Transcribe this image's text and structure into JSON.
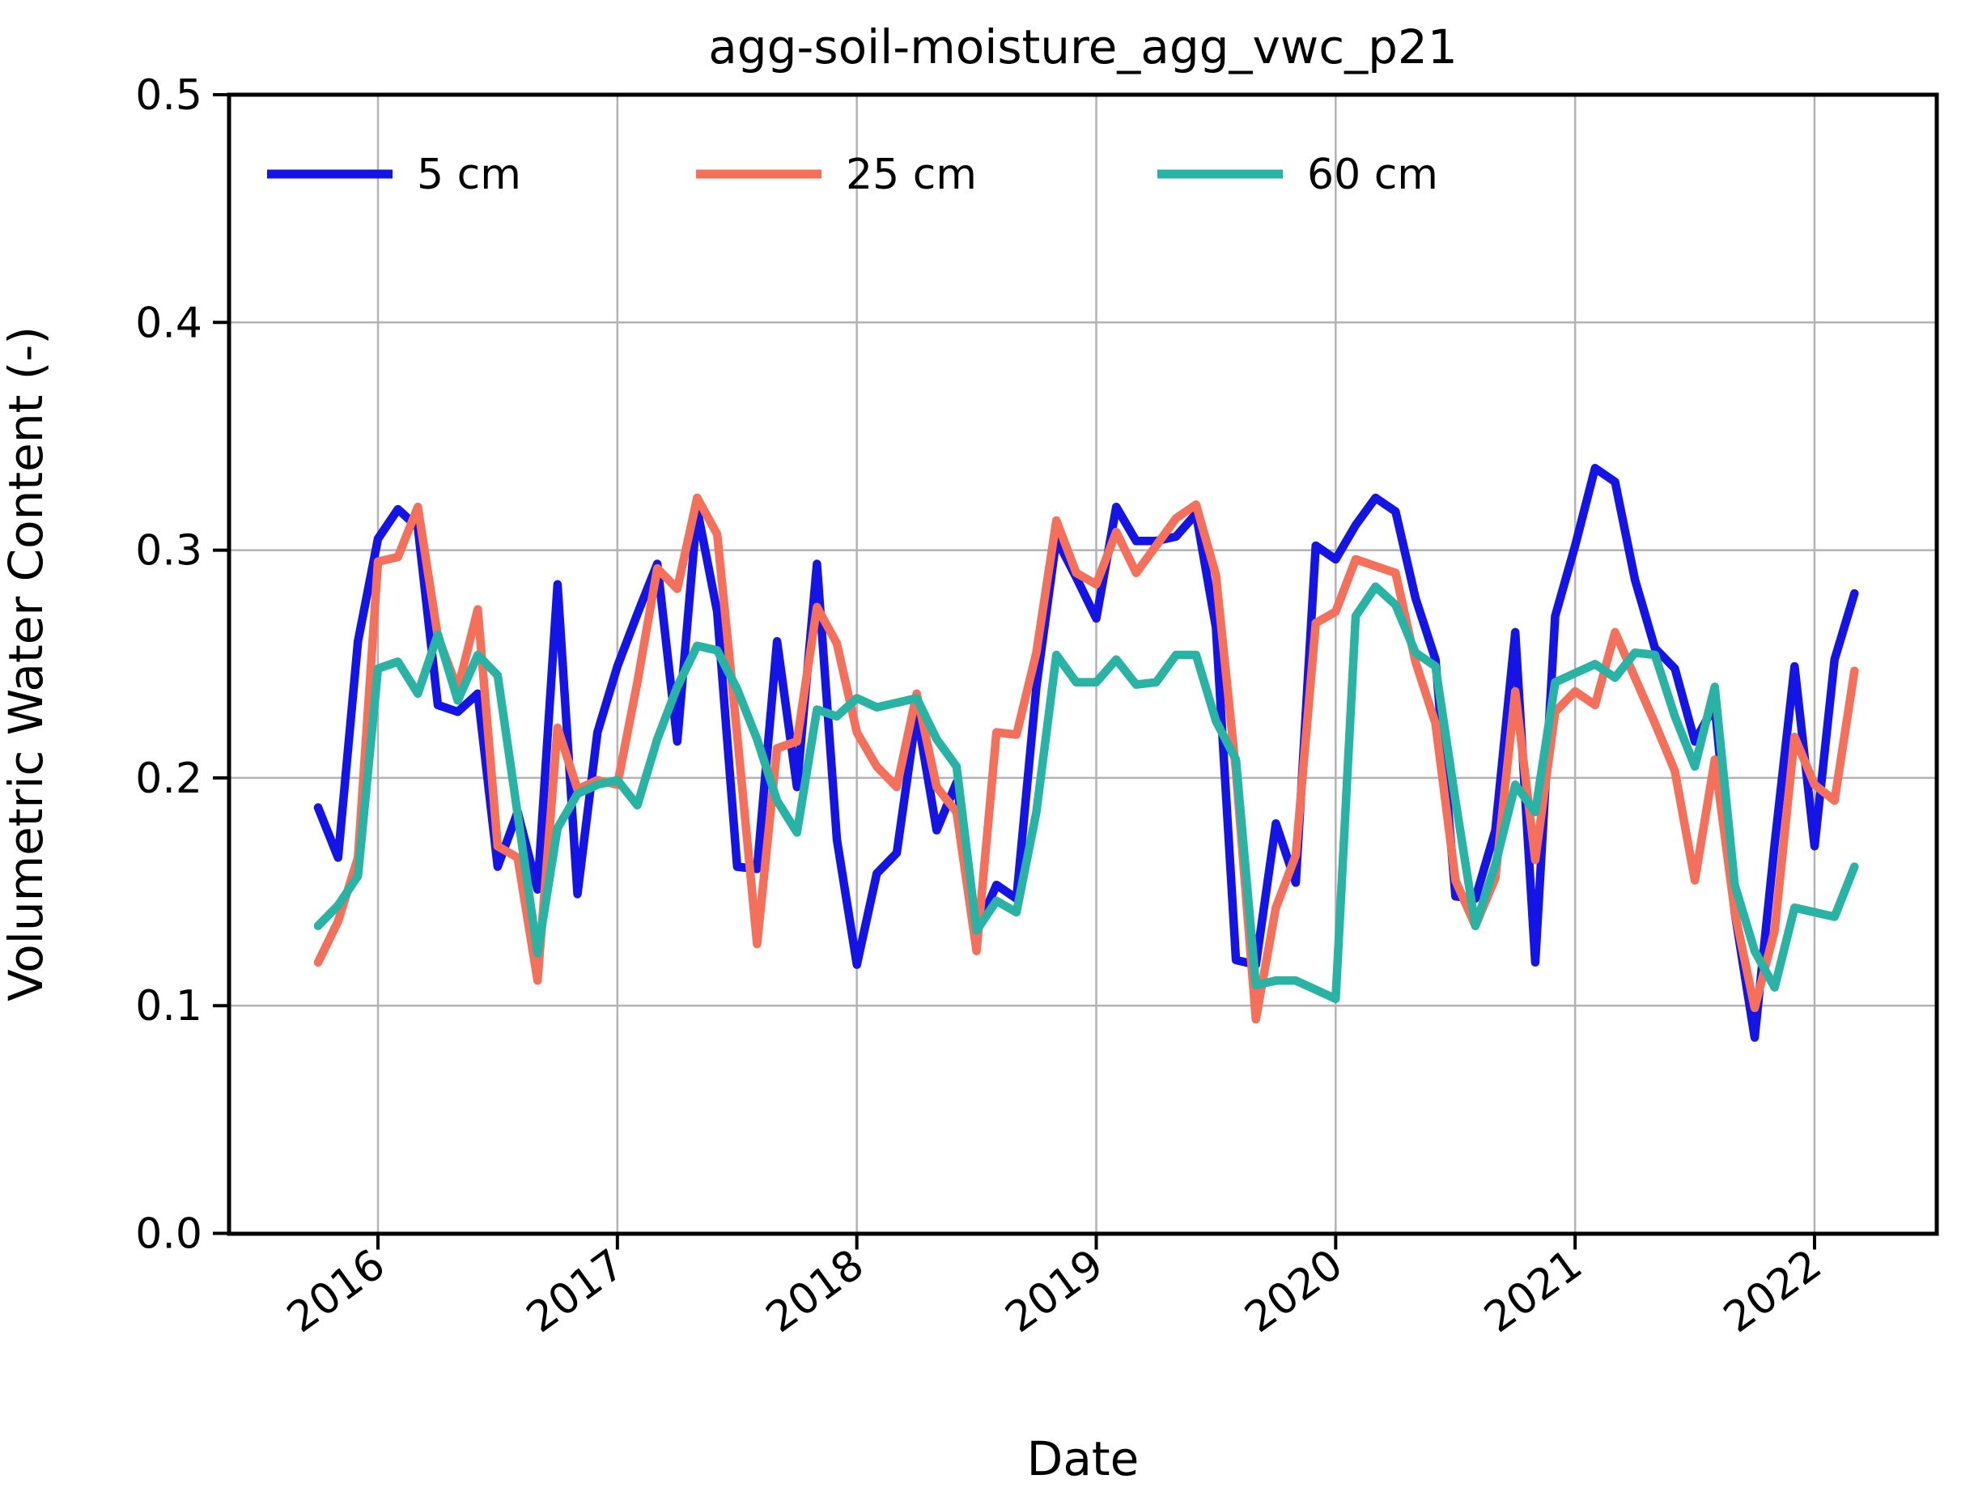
{
  "chart_data": {
    "type": "line",
    "title": "agg-soil-moisture_agg_vwc_p21",
    "xlabel": "Date",
    "ylabel": "Volumetric Water Content (-)",
    "ylim": [
      0.0,
      0.5
    ],
    "yticks": [
      0.0,
      0.1,
      0.2,
      0.3,
      0.4,
      0.5
    ],
    "ytick_labels": [
      "0.0",
      "0.1",
      "0.2",
      "0.3",
      "0.4",
      "0.5"
    ],
    "xtick_years": [
      "2016",
      "2017",
      "2018",
      "2019",
      "2020",
      "2021",
      "2022"
    ],
    "grid": true,
    "legend_position": "upper-left-horizontal",
    "background_color": "#ffffff",
    "grid_color": "#b3b3b3",
    "x": [
      "2015-10",
      "2015-11",
      "2015-12",
      "2016-01",
      "2016-02",
      "2016-03",
      "2016-04",
      "2016-05",
      "2016-06",
      "2016-07",
      "2016-08",
      "2016-09",
      "2016-10",
      "2016-11",
      "2016-12",
      "2017-01",
      "2017-02",
      "2017-03",
      "2017-04",
      "2017-05",
      "2017-06",
      "2017-07",
      "2017-08",
      "2017-09",
      "2017-10",
      "2017-11",
      "2017-12",
      "2018-01",
      "2018-02",
      "2018-03",
      "2018-04",
      "2018-05",
      "2018-06",
      "2018-07",
      "2018-08",
      "2018-09",
      "2018-10",
      "2018-11",
      "2018-12",
      "2019-01",
      "2019-02",
      "2019-03",
      "2019-04",
      "2019-05",
      "2019-06",
      "2019-07",
      "2019-08",
      "2019-09",
      "2019-10",
      "2019-11",
      "2019-12",
      "2020-01",
      "2020-02",
      "2020-03",
      "2020-04",
      "2020-05",
      "2020-06",
      "2020-07",
      "2020-08",
      "2020-09",
      "2020-10",
      "2020-11",
      "2020-12",
      "2021-01",
      "2021-02",
      "2021-03",
      "2021-04",
      "2021-05",
      "2021-06",
      "2021-07",
      "2021-08",
      "2021-09",
      "2021-10",
      "2021-11",
      "2021-12",
      "2022-01",
      "2022-02",
      "2022-03"
    ],
    "series": [
      {
        "name": "5 cm",
        "color": "#1414e6",
        "values": [
          0.187,
          0.165,
          0.26,
          0.305,
          0.318,
          0.31,
          0.232,
          0.229,
          0.237,
          0.161,
          0.185,
          0.151,
          0.285,
          0.149,
          0.22,
          0.249,
          0.272,
          0.294,
          0.216,
          0.318,
          0.273,
          0.161,
          0.16,
          0.26,
          0.196,
          0.294,
          0.173,
          0.118,
          0.158,
          0.167,
          0.229,
          0.177,
          0.198,
          0.133,
          0.153,
          0.147,
          0.24,
          0.305,
          0.288,
          0.27,
          0.319,
          0.304,
          0.304,
          0.306,
          0.316,
          0.266,
          0.12,
          0.118,
          0.18,
          0.154,
          0.302,
          0.296,
          0.311,
          0.323,
          0.317,
          0.279,
          0.252,
          0.148,
          0.147,
          0.177,
          0.264,
          0.119,
          0.271,
          0.302,
          0.336,
          0.33,
          0.287,
          0.257,
          0.248,
          0.216,
          0.232,
          0.141,
          0.086,
          0.171,
          0.249,
          0.17,
          0.252,
          0.281
        ]
      },
      {
        "name": "25 cm",
        "color": "#f4705a",
        "values": [
          0.119,
          0.137,
          0.165,
          0.295,
          0.297,
          0.319,
          0.262,
          0.239,
          0.274,
          0.17,
          0.165,
          0.111,
          0.222,
          0.195,
          0.199,
          0.197,
          0.242,
          0.292,
          0.283,
          0.323,
          0.307,
          0.219,
          0.127,
          0.213,
          0.216,
          0.275,
          0.259,
          0.22,
          0.205,
          0.196,
          0.237,
          0.196,
          0.185,
          0.124,
          0.22,
          0.219,
          0.255,
          0.313,
          0.29,
          0.285,
          0.308,
          0.29,
          0.302,
          0.314,
          0.32,
          0.289,
          0.203,
          0.094,
          0.143,
          0.166,
          0.268,
          0.273,
          0.296,
          0.293,
          0.29,
          0.251,
          0.224,
          0.155,
          0.135,
          0.156,
          0.238,
          0.164,
          0.229,
          0.238,
          0.232,
          0.264,
          0.244,
          0.224,
          0.203,
          0.155,
          0.208,
          0.141,
          0.099,
          0.133,
          0.218,
          0.197,
          0.19,
          0.247
        ]
      },
      {
        "name": "60 cm",
        "color": "#29b3a4",
        "values": [
          0.135,
          0.144,
          0.157,
          0.248,
          0.251,
          0.237,
          0.263,
          0.234,
          0.254,
          0.245,
          0.184,
          0.123,
          0.178,
          0.193,
          0.197,
          0.199,
          0.188,
          0.217,
          0.24,
          0.258,
          0.256,
          0.239,
          0.217,
          0.19,
          0.176,
          0.23,
          0.227,
          0.235,
          0.231,
          0.233,
          0.235,
          0.217,
          0.205,
          0.133,
          0.146,
          0.141,
          0.185,
          0.254,
          0.242,
          0.242,
          0.252,
          0.241,
          0.242,
          0.254,
          0.254,
          0.225,
          0.208,
          0.109,
          0.111,
          0.111,
          0.107,
          0.103,
          0.271,
          0.284,
          0.276,
          0.255,
          0.249,
          0.19,
          0.135,
          0.162,
          0.197,
          0.185,
          0.242,
          0.246,
          0.25,
          0.244,
          0.255,
          0.254,
          0.227,
          0.205,
          0.24,
          0.153,
          0.124,
          0.108,
          0.143,
          0.141,
          0.139,
          0.161
        ]
      }
    ]
  }
}
